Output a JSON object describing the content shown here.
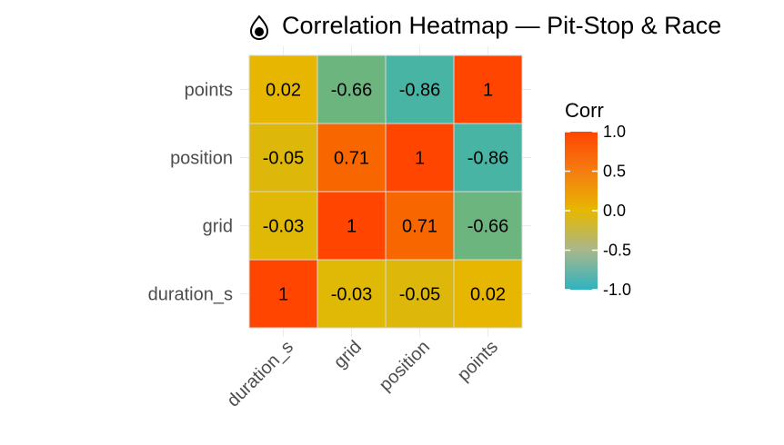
{
  "chart_data": {
    "type": "heatmap",
    "title": "Correlation Heatmap — Pit-Stop & Race",
    "title_icon": "drop-icon",
    "x_categories": [
      "duration_s",
      "grid",
      "position",
      "points"
    ],
    "y_categories": [
      "duration_s",
      "grid",
      "position",
      "points"
    ],
    "values": [
      [
        1,
        -0.03,
        -0.05,
        0.02
      ],
      [
        -0.03,
        1,
        0.71,
        -0.66
      ],
      [
        -0.05,
        0.71,
        1,
        -0.86
      ],
      [
        0.02,
        -0.66,
        -0.86,
        1
      ]
    ],
    "cell_labels": [
      [
        "1",
        "-0.03",
        "-0.05",
        "0.02"
      ],
      [
        "-0.03",
        "1",
        "0.71",
        "-0.66"
      ],
      [
        "-0.05",
        "0.71",
        "1",
        "-0.86"
      ],
      [
        "0.02",
        "-0.66",
        "-0.86",
        "1"
      ]
    ],
    "legend": {
      "title": "Corr",
      "range": [
        -1,
        1
      ],
      "ticks": [
        "1.0",
        "0.5",
        "0.0",
        "-0.5",
        "-1.0"
      ],
      "tick_values": [
        1,
        0.5,
        0,
        -0.5,
        -1
      ],
      "placement": "right"
    },
    "colors": {
      "low": "#2eb3bf",
      "mid": "#e6b800",
      "high": "#ff4500"
    },
    "grid": true
  }
}
